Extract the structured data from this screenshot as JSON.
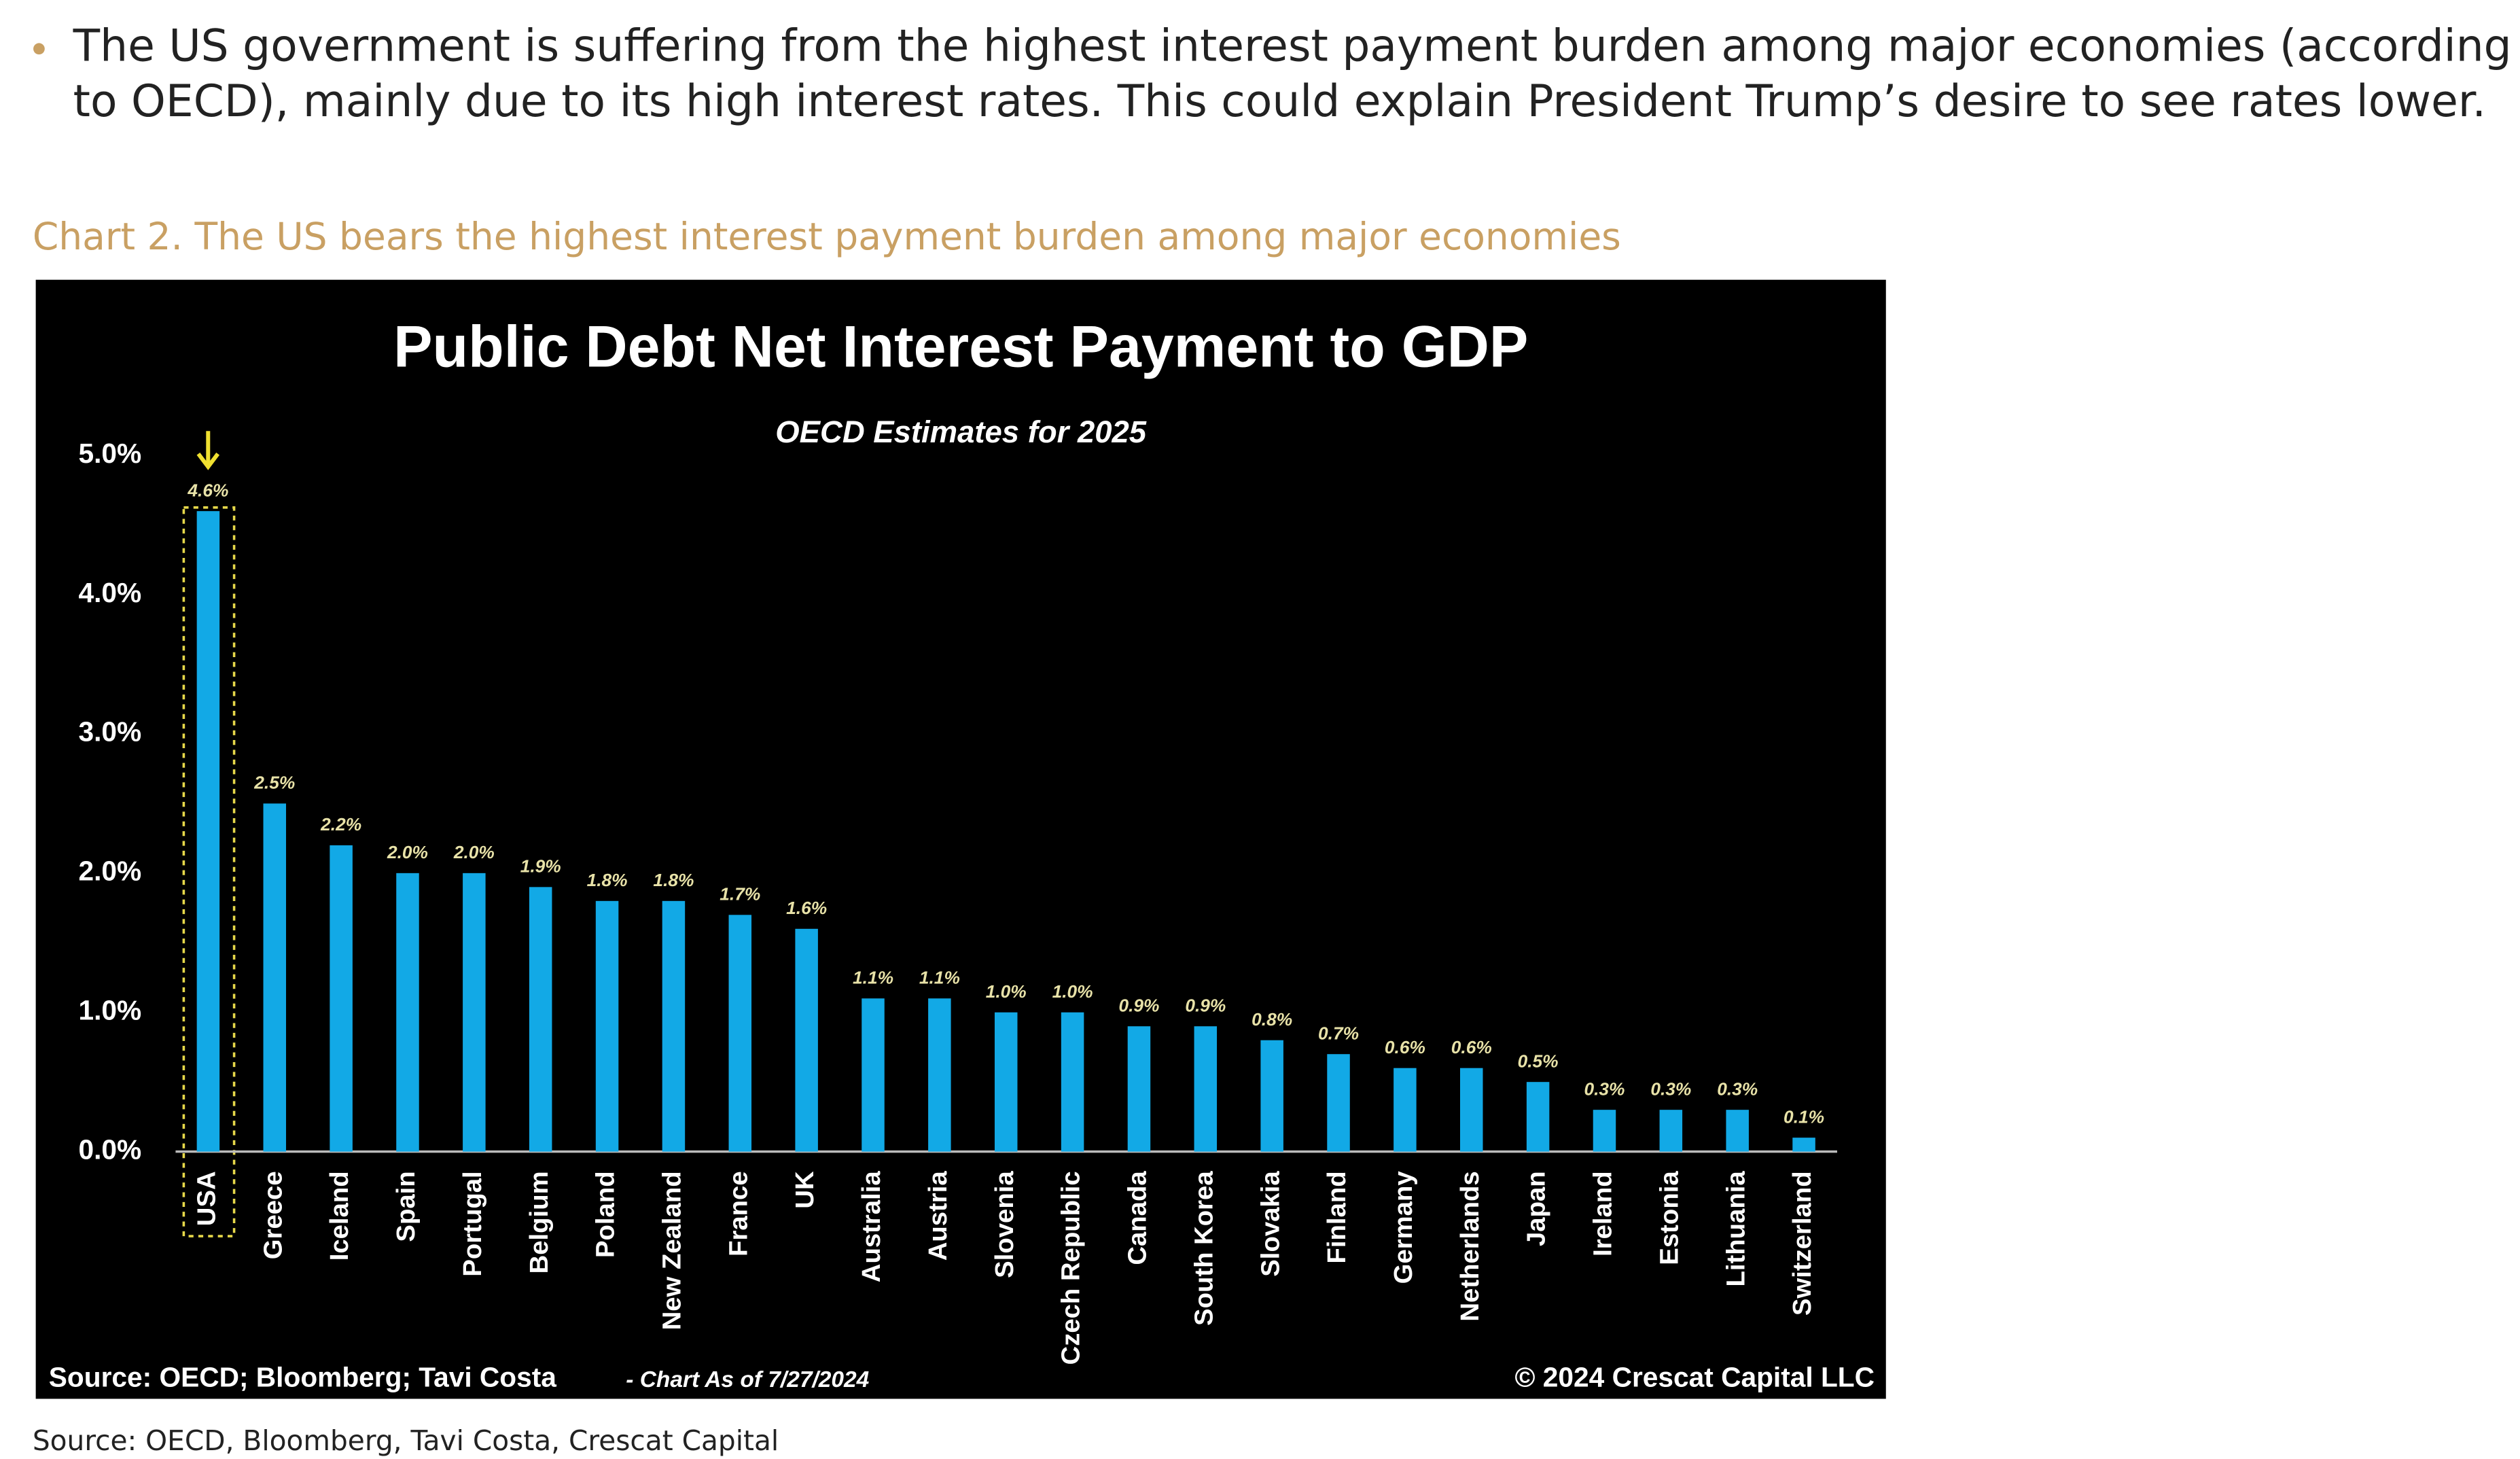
{
  "bullet": {
    "lines": [
      "The US government is suffering from the highest interest payment burden among major economies (according",
      "to OECD), mainly due to its high interest rates. This could explain President Trump’s desire to see rates lower."
    ]
  },
  "caption": "Chart 2. The US bears the highest interest payment burden among major economies",
  "chart_data": {
    "type": "bar",
    "title": "Public Debt Net Interest Payment to GDP",
    "subtitle": "OECD Estimates for 2025",
    "categories": [
      "USA",
      "Greece",
      "Iceland",
      "Spain",
      "Portugal",
      "Belgium",
      "Poland",
      "New Zealand",
      "France",
      "UK",
      "Australia",
      "Austria",
      "Slovenia",
      "Czech Republic",
      "Canada",
      "South Korea",
      "Slovakia",
      "Finland",
      "Germany",
      "Netherlands",
      "Japan",
      "Ireland",
      "Estonia",
      "Lithuania",
      "Switzerland"
    ],
    "values": [
      4.6,
      2.5,
      2.2,
      2.0,
      2.0,
      1.9,
      1.8,
      1.8,
      1.7,
      1.6,
      1.1,
      1.1,
      1.0,
      1.0,
      0.9,
      0.9,
      0.8,
      0.7,
      0.6,
      0.6,
      0.5,
      0.3,
      0.3,
      0.3,
      0.1
    ],
    "value_labels": [
      "4.6%",
      "2.5%",
      "2.2%",
      "2.0%",
      "2.0%",
      "1.9%",
      "1.8%",
      "1.8%",
      "1.7%",
      "1.6%",
      "1.1%",
      "1.1%",
      "1.0%",
      "1.0%",
      "0.9%",
      "0.9%",
      "0.8%",
      "0.7%",
      "0.6%",
      "0.6%",
      "0.5%",
      "0.3%",
      "0.3%",
      "0.3%",
      "0.1%"
    ],
    "color": "#12a9e6",
    "ylim": [
      0,
      5
    ],
    "yticks": [
      {
        "value": 0,
        "label": "0.0%"
      },
      {
        "value": 1,
        "label": "1.0%"
      },
      {
        "value": 2,
        "label": "2.0%"
      },
      {
        "value": 3,
        "label": "3.0%"
      },
      {
        "value": 4,
        "label": "4.0%"
      },
      {
        "value": 5,
        "label": "5.0%"
      }
    ],
    "grid": false,
    "source": "Source: OECD; Bloomberg; Tavi Costa",
    "as_of": "- Chart As of 7/27/2024",
    "copyright": "© 2024 Crescat Capital LLC"
  },
  "source": "Source: OECD, Bloomberg, Tavi Costa, Crescat Capital"
}
